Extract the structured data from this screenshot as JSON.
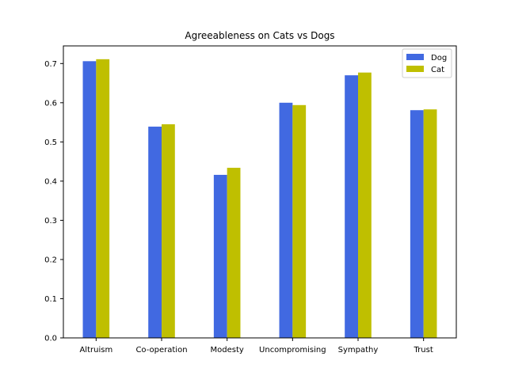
{
  "chart_data": {
    "type": "bar",
    "title": "Agreeableness on Cats vs Dogs",
    "xlabel": "",
    "ylabel": "",
    "categories": [
      "Altruism",
      "Co-operation",
      "Modesty",
      "Uncompromising",
      "Sympathy",
      "Trust"
    ],
    "series": [
      {
        "name": "Dog",
        "color": "#4169e1",
        "values": [
          0.706,
          0.539,
          0.416,
          0.6,
          0.67,
          0.581
        ]
      },
      {
        "name": "Cat",
        "color": "#bfbf00",
        "values": [
          0.711,
          0.545,
          0.434,
          0.594,
          0.677,
          0.583
        ]
      }
    ],
    "ylim": [
      0.0,
      0.745
    ],
    "yticks": [
      "0.0",
      "0.1",
      "0.2",
      "0.3",
      "0.4",
      "0.5",
      "0.6",
      "0.7"
    ],
    "grid": false,
    "legend_position": "top-right"
  }
}
